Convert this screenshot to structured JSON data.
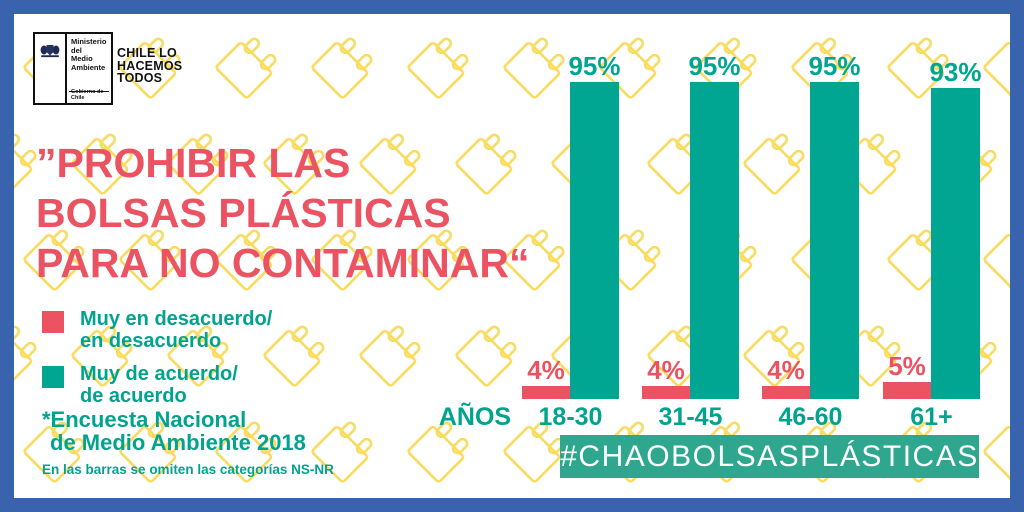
{
  "frame": {
    "border_color": "#3A63AE",
    "background": "#FFFFFF"
  },
  "logo": {
    "ministry_lines": [
      "Ministerio del",
      "Medio",
      "Ambiente"
    ],
    "government": "Gobierno de Chile",
    "tagline_lines": [
      "CHILE LO",
      "HACEMOS",
      "TODOS"
    ]
  },
  "quote": {
    "lines": [
      "”PROHIBIR LAS",
      "BOLSAS PLÁSTICAS",
      "PARA NO CONTAMINAR“"
    ],
    "color": "#EC5362"
  },
  "legend": {
    "items": [
      {
        "swatch_color": "#EC5362",
        "lines": [
          "Muy en desacuerdo/",
          "en desacuerdo"
        ]
      },
      {
        "swatch_color": "#00A691",
        "lines": [
          "Muy de acuerdo/",
          "de acuerdo"
        ]
      }
    ]
  },
  "footnote": {
    "lines": [
      "*Encuesta Nacional",
      "de Medio Ambiente 2018"
    ]
  },
  "omission_note": "En las barras se omiten las categorías NS-NR",
  "chart_data": {
    "type": "bar",
    "categories": [
      "18-30",
      "31-45",
      "46-60",
      "61+"
    ],
    "x_axis_label": "AÑOS",
    "unit": "%",
    "ylim": [
      0,
      100
    ],
    "grid": false,
    "legend_position": "left",
    "series": [
      {
        "name": "Muy en desacuerdo/en desacuerdo",
        "color": "#EC5362",
        "values": [
          4,
          4,
          4,
          5
        ]
      },
      {
        "name": "Muy de acuerdo/de acuerdo",
        "color": "#00A691",
        "values": [
          95,
          95,
          95,
          93
        ]
      }
    ]
  },
  "hashtag": {
    "label": "#CHAOBOLSASPLÁSTICAS",
    "bg_color": "#2FA78E",
    "text_color": "#FFFFFF"
  },
  "pattern": {
    "icon": "plastic-bag-outline",
    "color": "#F8DB5F"
  }
}
